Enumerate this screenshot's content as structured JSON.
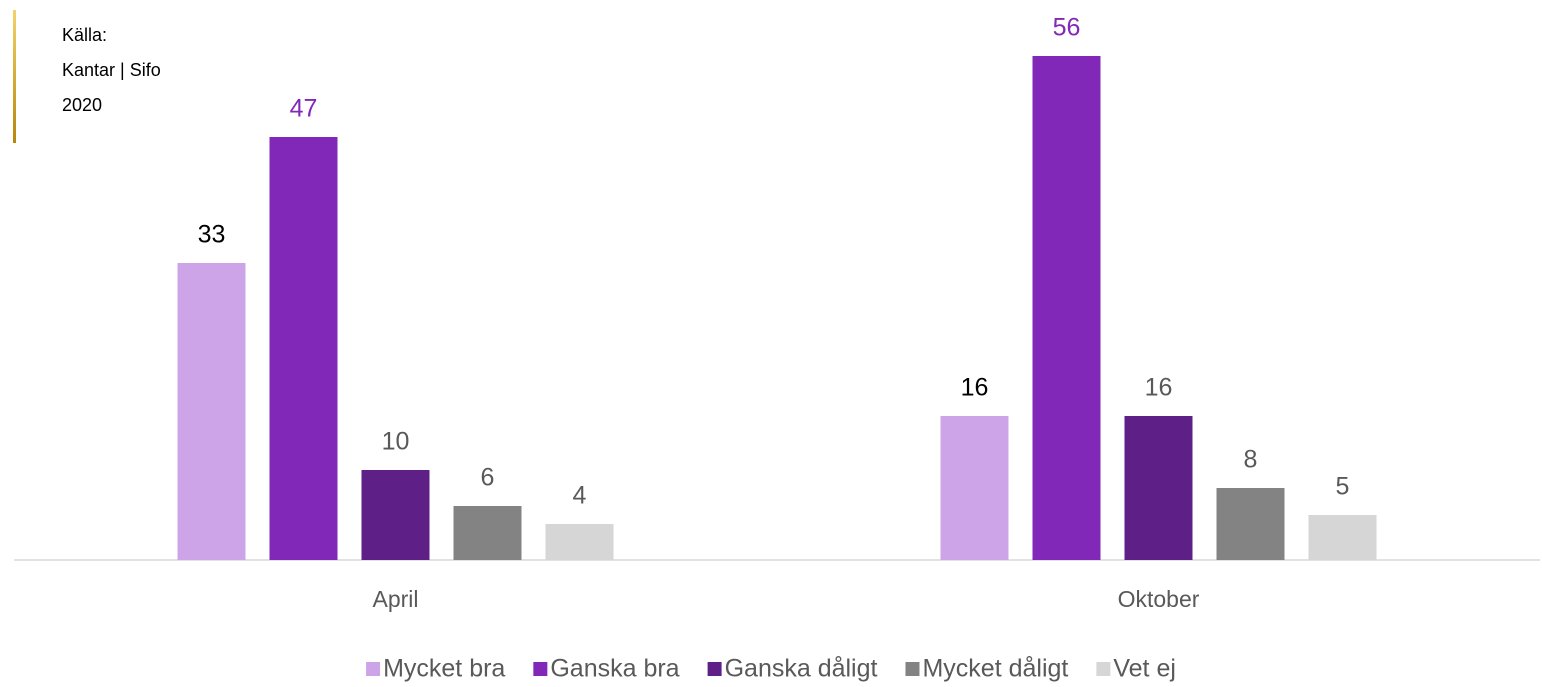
{
  "chart_data": {
    "type": "bar",
    "annotation": [
      "Källa:",
      "Kantar | Sifo",
      "2020"
    ],
    "categories": [
      "April",
      "Oktober"
    ],
    "series": [
      {
        "name": "Mycket bra",
        "color": "#cda4e8",
        "label_color": "#000000",
        "values": [
          33,
          16
        ]
      },
      {
        "name": "Ganska bra",
        "color": "#8228b8",
        "label_color": "#8228b8",
        "values": [
          47,
          56
        ]
      },
      {
        "name": "Ganska dåligt",
        "color": "#5e1f87",
        "label_color": "#595959",
        "values": [
          10,
          16
        ]
      },
      {
        "name": "Mycket dåligt",
        "color": "#838383",
        "label_color": "#595959",
        "values": [
          6,
          8
        ]
      },
      {
        "name": "Vet ej",
        "color": "#d6d6d6",
        "label_color": "#595959",
        "values": [
          4,
          5
        ]
      }
    ],
    "ylim": [
      0,
      62
    ],
    "legend": "bottom"
  }
}
